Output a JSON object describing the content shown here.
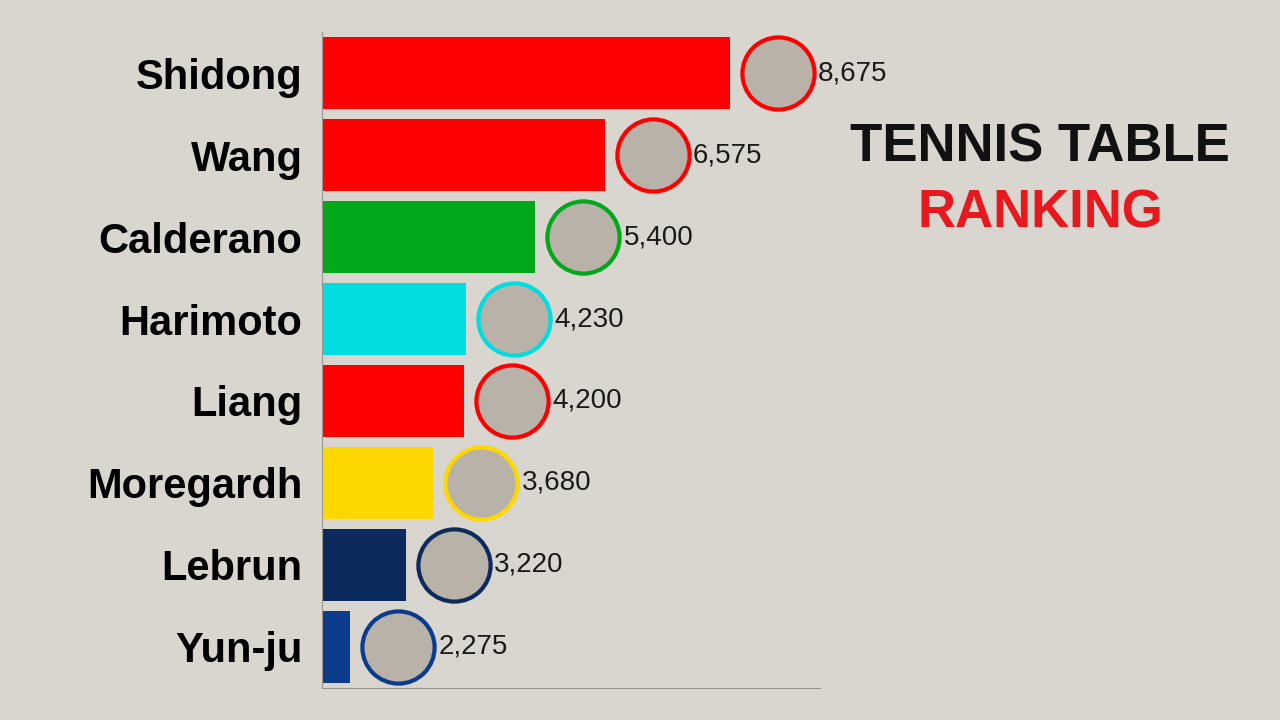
{
  "chart_data": {
    "type": "bar",
    "orientation": "horizontal",
    "title": "TENNIS TABLE",
    "subtitle": "RANKING",
    "categories": [
      "Shidong",
      "Wang",
      "Calderano",
      "Harimoto",
      "Liang",
      "Moregardh",
      "Lebrun",
      "Yun-ju"
    ],
    "values": [
      8675,
      6575,
      5400,
      4230,
      4200,
      3680,
      3220,
      2275
    ],
    "value_labels": [
      "8,675",
      "6,575",
      "5,400",
      "4,230",
      "4,200",
      "3,680",
      "3,220",
      "2,275"
    ],
    "colors": [
      "#ff0000",
      "#ff0000",
      "#00a81a",
      "#00dde0",
      "#ff0000",
      "#ffd700",
      "#0d2a5c",
      "#0b3c8c"
    ],
    "xlim": [
      1800,
      10200
    ],
    "xticks": [],
    "data_labels": true,
    "tick_labels": "y",
    "grid": false
  }
}
